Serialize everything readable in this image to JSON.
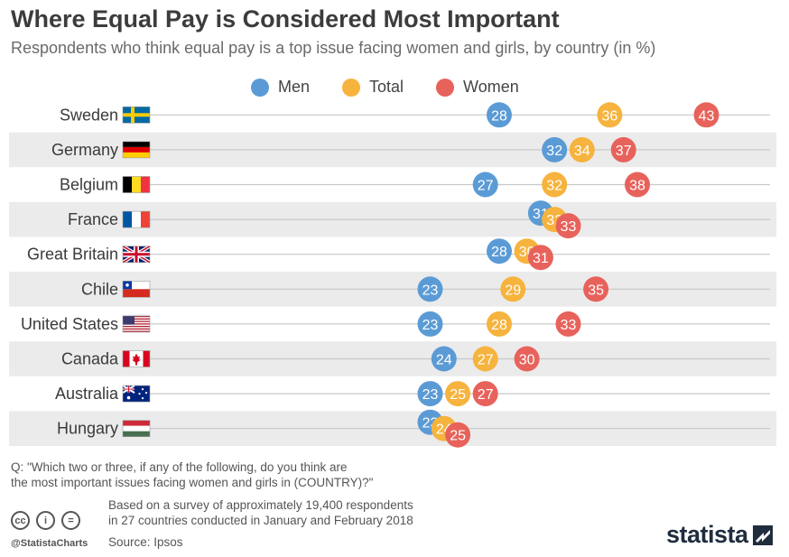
{
  "header": {
    "title": "Where Equal Pay is Considered Most Important",
    "subtitle": "Respondents who think equal pay is a top issue facing women and girls, by country (in %)"
  },
  "colors": {
    "men": "#5b9bd5",
    "total": "#f6b33d",
    "women": "#e8625c",
    "row_band": "#ebebeb",
    "line": "#c8c8c8"
  },
  "chart_data": {
    "type": "scatter",
    "categories": [
      "Sweden",
      "Germany",
      "Belgium",
      "France",
      "Great Britain",
      "Chile",
      "United States",
      "Canada",
      "Australia",
      "Hungary"
    ],
    "series": [
      {
        "name": "Men",
        "values": [
          28,
          32,
          27,
          31,
          28,
          23,
          23,
          24,
          23,
          23
        ]
      },
      {
        "name": "Total",
        "values": [
          36,
          34,
          32,
          32,
          30,
          29,
          28,
          27,
          25,
          24
        ]
      },
      {
        "name": "Women",
        "values": [
          43,
          37,
          38,
          33,
          31,
          35,
          33,
          30,
          27,
          25
        ]
      }
    ],
    "legend_position": "top"
  },
  "footer": {
    "question_line1": "Q: \"Which two or three, if any of the following, do you think are",
    "question_line2": "the most important issues facing women and girls in (COUNTRY)?\"",
    "survey_line1": "Based on a survey of approximately 19,400 respondents",
    "survey_line2": "in 27 countries conducted in January and February 2018",
    "source": "Source: Ipsos",
    "handle": "@StatistaCharts",
    "brand": "statista",
    "cc_icons": [
      "cc-icon",
      "attribution-icon",
      "no-derivatives-icon"
    ]
  }
}
